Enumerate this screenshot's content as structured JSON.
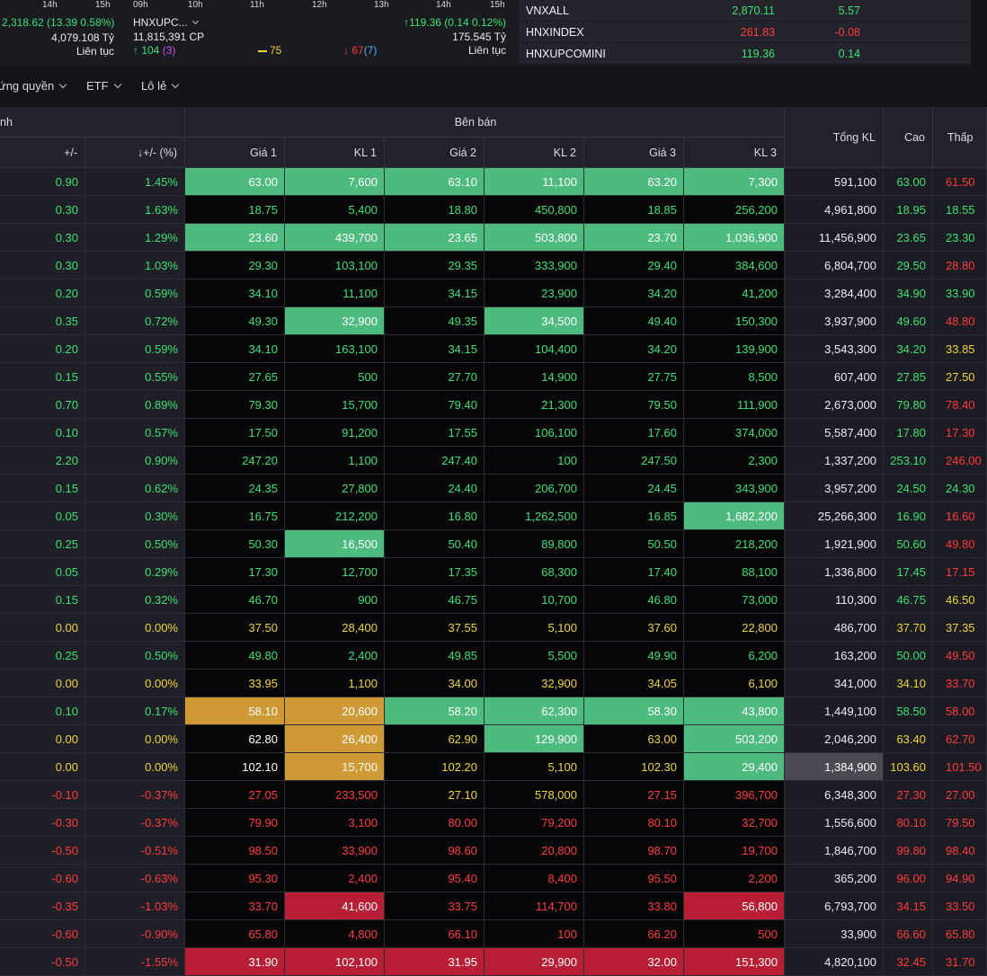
{
  "market_cards": {
    "left": {
      "axis_times": [
        "14h",
        "15h"
      ],
      "value_line": "2,318.62 (13.39 0.58%)",
      "value_line_color": "up",
      "volume": "4,079.108 Tỷ",
      "session": "Liên tục"
    },
    "middle": {
      "axis_times": [
        "09h",
        "10h",
        "11h",
        "12h",
        "13h",
        "14h",
        "15h"
      ],
      "index_name": "HNXUPC...",
      "index_change": "↑119.36 (0.14 0.12%)",
      "volume_cp": "11,815,391 CP",
      "value_ty": "175.545 Tỷ",
      "session": "Liên tục",
      "advancers": "↑ 104",
      "ceiling_count": "(3)",
      "unchanged": "75",
      "decliners": "↓ 67",
      "floor_count": "(7)"
    }
  },
  "indices": [
    {
      "name": "VNXALL",
      "value": "2,870.11",
      "change": "5.57",
      "color": "up"
    },
    {
      "name": "HNXINDEX",
      "value": "261.83",
      "change": "-0.08",
      "color": "down"
    },
    {
      "name": "HNXUPCOMINI",
      "value": "119.36",
      "change": "0.14",
      "color": "up"
    }
  ],
  "filters": [
    "ứng quyền",
    "ETF",
    "Lô lẻ"
  ],
  "board": {
    "group_partial": "nh",
    "group_sell": "Bên bán",
    "columns": [
      "+/-",
      "↓+/- (%)",
      "Giá 1",
      "KL 1",
      "Giá 2",
      "KL 2",
      "Giá 3",
      "KL 3",
      "Tổng KL",
      "Cao",
      "Thấp"
    ],
    "rows": [
      {
        "ch": "0.90",
        "pct": "1.45%",
        "g1": "63.00",
        "k1": "7,600",
        "g2": "63.10",
        "k2": "11,100",
        "g3": "63.20",
        "k3": "7,300",
        "tkl": "591,100",
        "cao": "63.00",
        "thap": "61.50"
      },
      {
        "ch": "0.30",
        "pct": "1.63%",
        "g1": "18.75",
        "k1": "5,400",
        "g2": "18.80",
        "k2": "450,800",
        "g3": "18.85",
        "k3": "256,200",
        "tkl": "4,961,800",
        "cao": "18.95",
        "thap": "18.55"
      },
      {
        "ch": "0.30",
        "pct": "1.29%",
        "g1": "23.60",
        "k1": "439,700",
        "g2": "23.65",
        "k2": "503,800",
        "g3": "23.70",
        "k3": "1,036,900",
        "tkl": "11,456,900",
        "cao": "23.65",
        "thap": "23.30"
      },
      {
        "ch": "0.30",
        "pct": "1.03%",
        "g1": "29.30",
        "k1": "103,100",
        "g2": "29.35",
        "k2": "333,900",
        "g3": "29.40",
        "k3": "384,600",
        "tkl": "6,804,700",
        "cao": "29.50",
        "thap": "28.80"
      },
      {
        "ch": "0.20",
        "pct": "0.59%",
        "g1": "34.10",
        "k1": "11,100",
        "g2": "34.15",
        "k2": "23,900",
        "g3": "34.20",
        "k3": "41,200",
        "tkl": "3,284,400",
        "cao": "34.90",
        "thap": "33.90"
      },
      {
        "ch": "0.35",
        "pct": "0.72%",
        "g1": "49.30",
        "k1": "32,900",
        "g2": "49.35",
        "k2": "34,500",
        "g3": "49.40",
        "k3": "150,300",
        "tkl": "3,937,900",
        "cao": "49.60",
        "thap": "48.80"
      },
      {
        "ch": "0.20",
        "pct": "0.59%",
        "g1": "34.10",
        "k1": "163,100",
        "g2": "34.15",
        "k2": "104,400",
        "g3": "34.20",
        "k3": "139,900",
        "tkl": "3,543,300",
        "cao": "34.20",
        "thap": "33.85"
      },
      {
        "ch": "0.15",
        "pct": "0.55%",
        "g1": "27.65",
        "k1": "500",
        "g2": "27.70",
        "k2": "14,900",
        "g3": "27.75",
        "k3": "8,500",
        "tkl": "607,400",
        "cao": "27.85",
        "thap": "27.50"
      },
      {
        "ch": "0.70",
        "pct": "0.89%",
        "g1": "79.30",
        "k1": "15,700",
        "g2": "79.40",
        "k2": "21,300",
        "g3": "79.50",
        "k3": "111,900",
        "tkl": "2,673,000",
        "cao": "79.80",
        "thap": "78.40"
      },
      {
        "ch": "0.10",
        "pct": "0.57%",
        "g1": "17.50",
        "k1": "91,200",
        "g2": "17.55",
        "k2": "106,100",
        "g3": "17.60",
        "k3": "374,000",
        "tkl": "5,587,400",
        "cao": "17.80",
        "thap": "17.30"
      },
      {
        "ch": "2.20",
        "pct": "0.90%",
        "g1": "247.20",
        "k1": "1,100",
        "g2": "247.40",
        "k2": "100",
        "g3": "247.50",
        "k3": "2,300",
        "tkl": "1,337,200",
        "cao": "253.10",
        "thap": "246.00"
      },
      {
        "ch": "0.15",
        "pct": "0.62%",
        "g1": "24.35",
        "k1": "27,800",
        "g2": "24.40",
        "k2": "206,700",
        "g3": "24.45",
        "k3": "343,900",
        "tkl": "3,957,200",
        "cao": "24.50",
        "thap": "24.30"
      },
      {
        "ch": "0.05",
        "pct": "0.30%",
        "g1": "16.75",
        "k1": "212,200",
        "g2": "16.80",
        "k2": "1,262,500",
        "g3": "16.85",
        "k3": "1,682,200",
        "tkl": "25,266,300",
        "cao": "16.90",
        "thap": "16.60"
      },
      {
        "ch": "0.25",
        "pct": "0.50%",
        "g1": "50.30",
        "k1": "16,500",
        "g2": "50.40",
        "k2": "89,800",
        "g3": "50.50",
        "k3": "218,200",
        "tkl": "1,921,900",
        "cao": "50.60",
        "thap": "49.80"
      },
      {
        "ch": "0.05",
        "pct": "0.29%",
        "g1": "17.30",
        "k1": "12,700",
        "g2": "17.35",
        "k2": "68,300",
        "g3": "17.40",
        "k3": "88,100",
        "tkl": "1,336,800",
        "cao": "17.45",
        "thap": "17.15"
      },
      {
        "ch": "0.15",
        "pct": "0.32%",
        "g1": "46.70",
        "k1": "900",
        "g2": "46.75",
        "k2": "10,700",
        "g3": "46.80",
        "k3": "73,000",
        "tkl": "110,300",
        "cao": "46.75",
        "thap": "46.50"
      },
      {
        "ch": "0.00",
        "pct": "0.00%",
        "g1": "37.50",
        "k1": "28,400",
        "g2": "37.55",
        "k2": "5,100",
        "g3": "37.60",
        "k3": "22,800",
        "tkl": "486,700",
        "cao": "37.70",
        "thap": "37.35"
      },
      {
        "ch": "0.25",
        "pct": "0.50%",
        "g1": "49.80",
        "k1": "2,400",
        "g2": "49.85",
        "k2": "5,500",
        "g3": "49.90",
        "k3": "6,200",
        "tkl": "163,200",
        "cao": "50.00",
        "thap": "49.50"
      },
      {
        "ch": "0.00",
        "pct": "0.00%",
        "g1": "33.95",
        "k1": "1,100",
        "g2": "34.00",
        "k2": "32,900",
        "g3": "34.05",
        "k3": "6,100",
        "tkl": "341,000",
        "cao": "34.10",
        "thap": "33.70"
      },
      {
        "ch": "0.10",
        "pct": "0.17%",
        "g1": "58.10",
        "k1": "20,600",
        "g2": "58.20",
        "k2": "62,300",
        "g3": "58.30",
        "k3": "43,800",
        "tkl": "1,449,100",
        "cao": "58.50",
        "thap": "58.00"
      },
      {
        "ch": "0.00",
        "pct": "0.00%",
        "g1": "62.80",
        "k1": "26,400",
        "g2": "62.90",
        "k2": "129,900",
        "g3": "63.00",
        "k3": "503,200",
        "tkl": "2,046,200",
        "cao": "63.40",
        "thap": "62.70"
      },
      {
        "ch": "0.00",
        "pct": "0.00%",
        "g1": "102.10",
        "k1": "15,700",
        "g2": "102.20",
        "k2": "5,100",
        "g3": "102.30",
        "k3": "29,400",
        "tkl": "1,384,900",
        "cao": "103.60",
        "thap": "101.50"
      },
      {
        "ch": "-0.10",
        "pct": "-0.37%",
        "g1": "27.05",
        "k1": "233,500",
        "g2": "27.10",
        "k2": "578,000",
        "g3": "27.15",
        "k3": "396,700",
        "tkl": "6,348,300",
        "cao": "27.30",
        "thap": "27.00"
      },
      {
        "ch": "-0.30",
        "pct": "-0.37%",
        "g1": "79.90",
        "k1": "3,100",
        "g2": "80.00",
        "k2": "79,200",
        "g3": "80.10",
        "k3": "32,700",
        "tkl": "1,556,600",
        "cao": "80.10",
        "thap": "79.50"
      },
      {
        "ch": "-0.50",
        "pct": "-0.51%",
        "g1": "98.50",
        "k1": "33,900",
        "g2": "98.60",
        "k2": "20,800",
        "g3": "98.70",
        "k3": "19,700",
        "tkl": "1,846,700",
        "cao": "99.80",
        "thap": "98.40"
      },
      {
        "ch": "-0.60",
        "pct": "-0.63%",
        "g1": "95.30",
        "k1": "2,400",
        "g2": "95.40",
        "k2": "8,400",
        "g3": "95.50",
        "k3": "2,200",
        "tkl": "365,200",
        "cao": "96.00",
        "thap": "94.90"
      },
      {
        "ch": "-0.35",
        "pct": "-1.03%",
        "g1": "33.70",
        "k1": "41,600",
        "g2": "33.75",
        "k2": "114,700",
        "g3": "33.80",
        "k3": "56,800",
        "tkl": "6,793,700",
        "cao": "34.15",
        "thap": "33.50"
      },
      {
        "ch": "-0.60",
        "pct": "-0.90%",
        "g1": "65.80",
        "k1": "4,800",
        "g2": "66.10",
        "k2": "100",
        "g3": "66.20",
        "k3": "500",
        "tkl": "33,900",
        "cao": "66.60",
        "thap": "65.80"
      },
      {
        "ch": "-0.50",
        "pct": "-1.55%",
        "g1": "31.90",
        "k1": "102,100",
        "g2": "31.95",
        "k2": "29,900",
        "g3": "32.00",
        "k3": "151,300",
        "tkl": "4,820,100",
        "cao": "32.45",
        "thap": "31.70"
      }
    ]
  },
  "colors": {
    "up": "#3fe071",
    "down": "#ff3b3b",
    "ref": "#f0d43c",
    "ceil": "#d44ee0",
    "floor": "#4fb6ff",
    "highlight_green": "#4dba7e",
    "highlight_orange": "#cf9a36",
    "highlight_red": "#b81f34"
  }
}
